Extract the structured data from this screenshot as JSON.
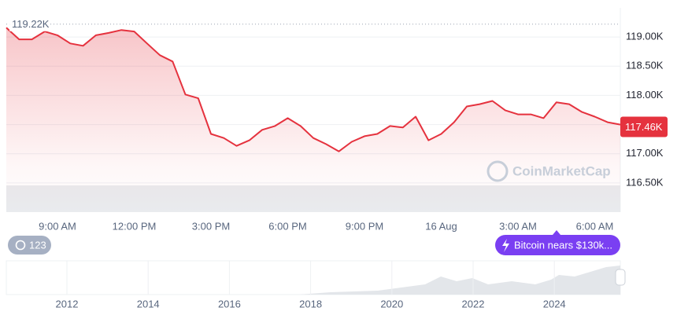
{
  "chart_data": {
    "type": "line",
    "categories": [
      null,
      null,
      null,
      null,
      "9:00 AM",
      null,
      null,
      null,
      null,
      null,
      "12:00 PM",
      null,
      null,
      null,
      null,
      null,
      "3:00 PM",
      null,
      null,
      null,
      null,
      null,
      "6:00 PM",
      null,
      null,
      null,
      null,
      null,
      "9:00 PM",
      null,
      null,
      null,
      null,
      null,
      "16 Aug",
      null,
      null,
      null,
      null,
      null,
      "3:00 AM",
      null,
      null,
      null,
      null,
      null,
      "6:00 AM",
      null,
      null
    ],
    "values": [
      119160,
      118960,
      118960,
      119095,
      119030,
      118890,
      118850,
      119030,
      119070,
      119120,
      119095,
      118890,
      118690,
      118580,
      118015,
      117950,
      117340,
      117270,
      117135,
      117230,
      117410,
      117475,
      117610,
      117475,
      117270,
      117165,
      117040,
      117205,
      117300,
      117340,
      117475,
      117450,
      117635,
      117230,
      117340,
      117540,
      117810,
      117850,
      117905,
      117745,
      117675,
      117675,
      117610,
      117880,
      117850,
      117715,
      117635,
      117540,
      117500
    ],
    "color": "#e5323e",
    "ylim": [
      116000,
      119500
    ],
    "yticks": [
      {
        "value": 116500,
        "label": "116.50K"
      },
      {
        "value": 117000,
        "label": "117.00K"
      },
      {
        "value": 117500,
        "label": "117.50K"
      },
      {
        "value": 118000,
        "label": "118.00K"
      },
      {
        "value": 118500,
        "label": "118.50K"
      },
      {
        "value": 119000,
        "label": "119.00K"
      }
    ],
    "grid": true,
    "max_marker": {
      "value": 119220,
      "label": "119.22K"
    },
    "last_marker": {
      "value": 117460,
      "label": "117.46K"
    },
    "watermark": "CoinMarketCap",
    "badges": [
      "123",
      "Bitcoin nears $130k..."
    ],
    "navigator_labels": [
      "2012",
      "2014",
      "2016",
      "2018",
      "2020",
      "2022",
      "2024"
    ]
  }
}
